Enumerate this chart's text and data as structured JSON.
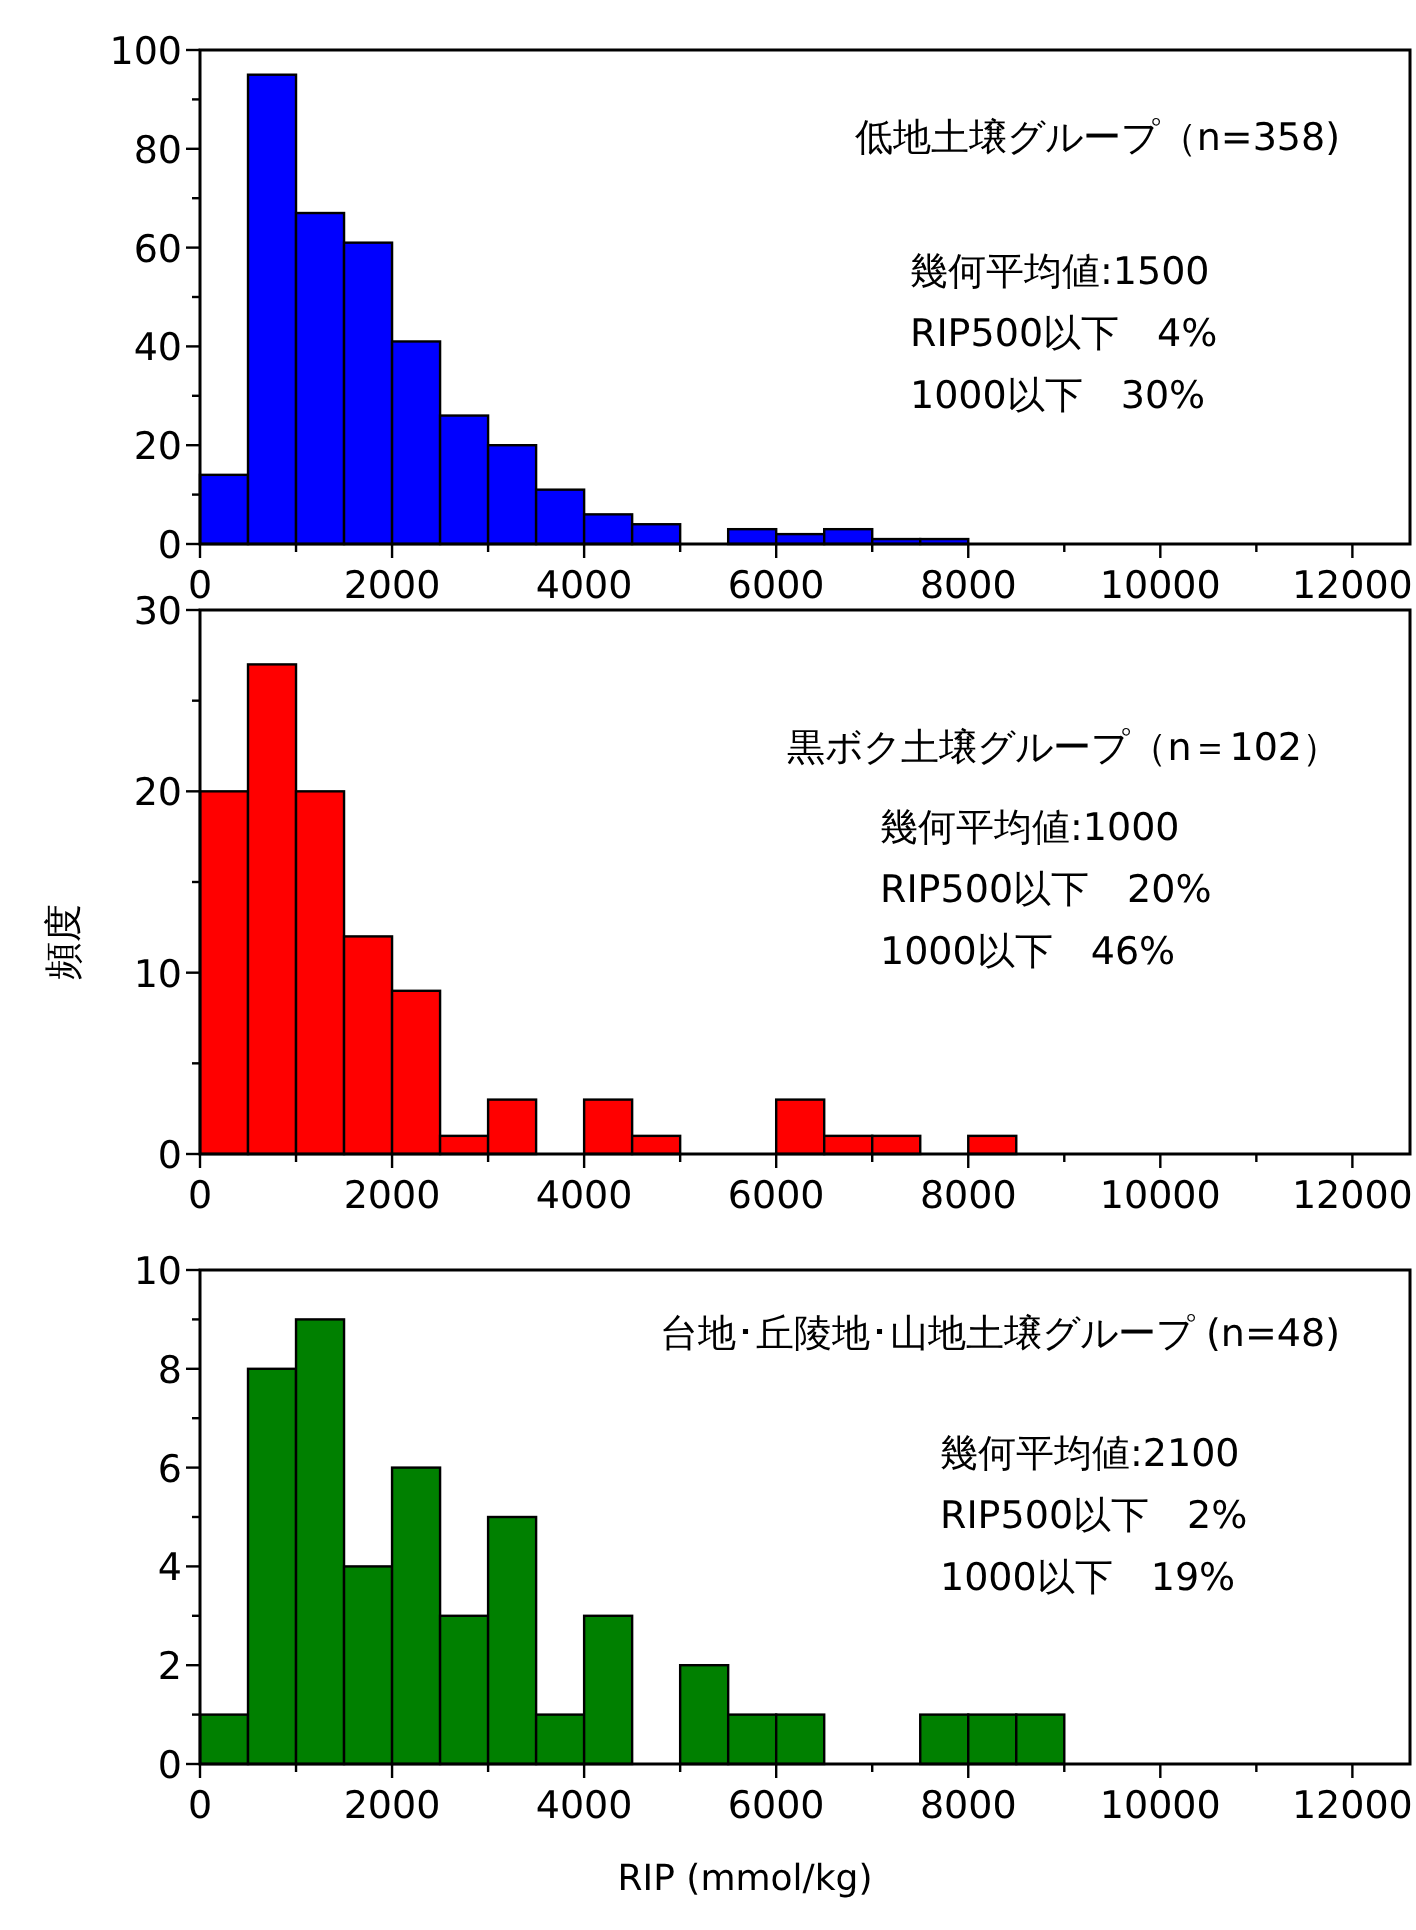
{
  "chart_data": [
    {
      "type": "histogram",
      "title": "低地土壌グループ（n=358)",
      "annotations": [
        "幾何平均値:1500",
        "RIP500以下　4%",
        "1000以下　30%"
      ],
      "color": "#0000ff",
      "bins": [
        0,
        500,
        1000,
        1500,
        2000,
        2500,
        3000,
        3500,
        4000,
        4500,
        5000,
        5500,
        6000,
        6500,
        7000,
        7500,
        8000
      ],
      "values": [
        14,
        95,
        67,
        61,
        41,
        26,
        20,
        11,
        6,
        4,
        0,
        3,
        2,
        3,
        1,
        1
      ],
      "xlim": [
        0,
        12600
      ],
      "xticks": [
        0,
        {
          "value": 1000,
          "label": null
        },
        2000,
        {
          "value": 3000,
          "label": null
        },
        4000,
        {
          "value": 5000,
          "label": null
        },
        6000,
        {
          "value": 7000,
          "label": null
        },
        8000,
        {
          "value": 9000,
          "label": null
        },
        10000,
        {
          "value": 11000,
          "label": null
        },
        12000
      ],
      "ylim": [
        0,
        100
      ],
      "yticks": [
        0,
        {
          "value": 10,
          "label": null
        },
        20,
        {
          "value": 30,
          "label": null
        },
        40,
        {
          "value": 50,
          "label": null
        },
        60,
        {
          "value": 70,
          "label": null
        },
        80,
        {
          "value": 90,
          "label": null
        },
        100
      ]
    },
    {
      "type": "histogram",
      "title": "黒ボク土壌グループ（n＝102）",
      "ylabel": "頻度",
      "annotations": [
        "幾何平均値:1000",
        "RIP500以下　20%",
        "1000以下　46%"
      ],
      "color": "#ff0000",
      "bins": [
        0,
        500,
        1000,
        1500,
        2000,
        2500,
        3000,
        3500,
        4000,
        4500,
        5000,
        5500,
        6000,
        6500,
        7000,
        7500,
        8000,
        8500
      ],
      "values": [
        20,
        27,
        20,
        12,
        9,
        1,
        3,
        0,
        3,
        1,
        0,
        0,
        3,
        1,
        1,
        0,
        1
      ],
      "xlim": [
        0,
        12600
      ],
      "xticks": [
        0,
        {
          "value": 1000,
          "label": null
        },
        2000,
        {
          "value": 3000,
          "label": null
        },
        4000,
        {
          "value": 5000,
          "label": null
        },
        6000,
        {
          "value": 7000,
          "label": null
        },
        8000,
        {
          "value": 9000,
          "label": null
        },
        10000,
        {
          "value": 11000,
          "label": null
        },
        12000
      ],
      "ylim": [
        0,
        30
      ],
      "yticks": [
        0,
        {
          "value": 5,
          "label": null
        },
        10,
        {
          "value": 15,
          "label": null
        },
        20,
        {
          "value": 25,
          "label": null
        },
        30
      ]
    },
    {
      "type": "histogram",
      "title": "台地･丘陵地･山地土壌グループ (n=48)",
      "xlabel": "RIP (mmol/kg)",
      "annotations": [
        "幾何平均値:2100",
        "RIP500以下　2%",
        "1000以下　19%"
      ],
      "color": "#008000",
      "bins": [
        0,
        500,
        1000,
        1500,
        2000,
        2500,
        3000,
        3500,
        4000,
        4500,
        5000,
        5500,
        6000,
        6500,
        7000,
        7500,
        8000,
        8500,
        9000
      ],
      "values": [
        1,
        8,
        9,
        4,
        6,
        3,
        5,
        1,
        3,
        0,
        2,
        1,
        1,
        0,
        0,
        1,
        1,
        1
      ],
      "xlim": [
        0,
        12600
      ],
      "xticks": [
        0,
        {
          "value": 1000,
          "label": null
        },
        2000,
        {
          "value": 3000,
          "label": null
        },
        4000,
        {
          "value": 5000,
          "label": null
        },
        6000,
        {
          "value": 7000,
          "label": null
        },
        8000,
        {
          "value": 9000,
          "label": null
        },
        10000,
        {
          "value": 11000,
          "label": null
        },
        12000
      ],
      "ylim": [
        0,
        10
      ],
      "yticks": [
        0,
        {
          "value": 1,
          "label": null
        },
        2,
        {
          "value": 3,
          "label": null
        },
        4,
        {
          "value": 5,
          "label": null
        },
        6,
        {
          "value": 7,
          "label": null
        },
        8,
        {
          "value": 9,
          "label": null
        },
        10
      ]
    }
  ]
}
